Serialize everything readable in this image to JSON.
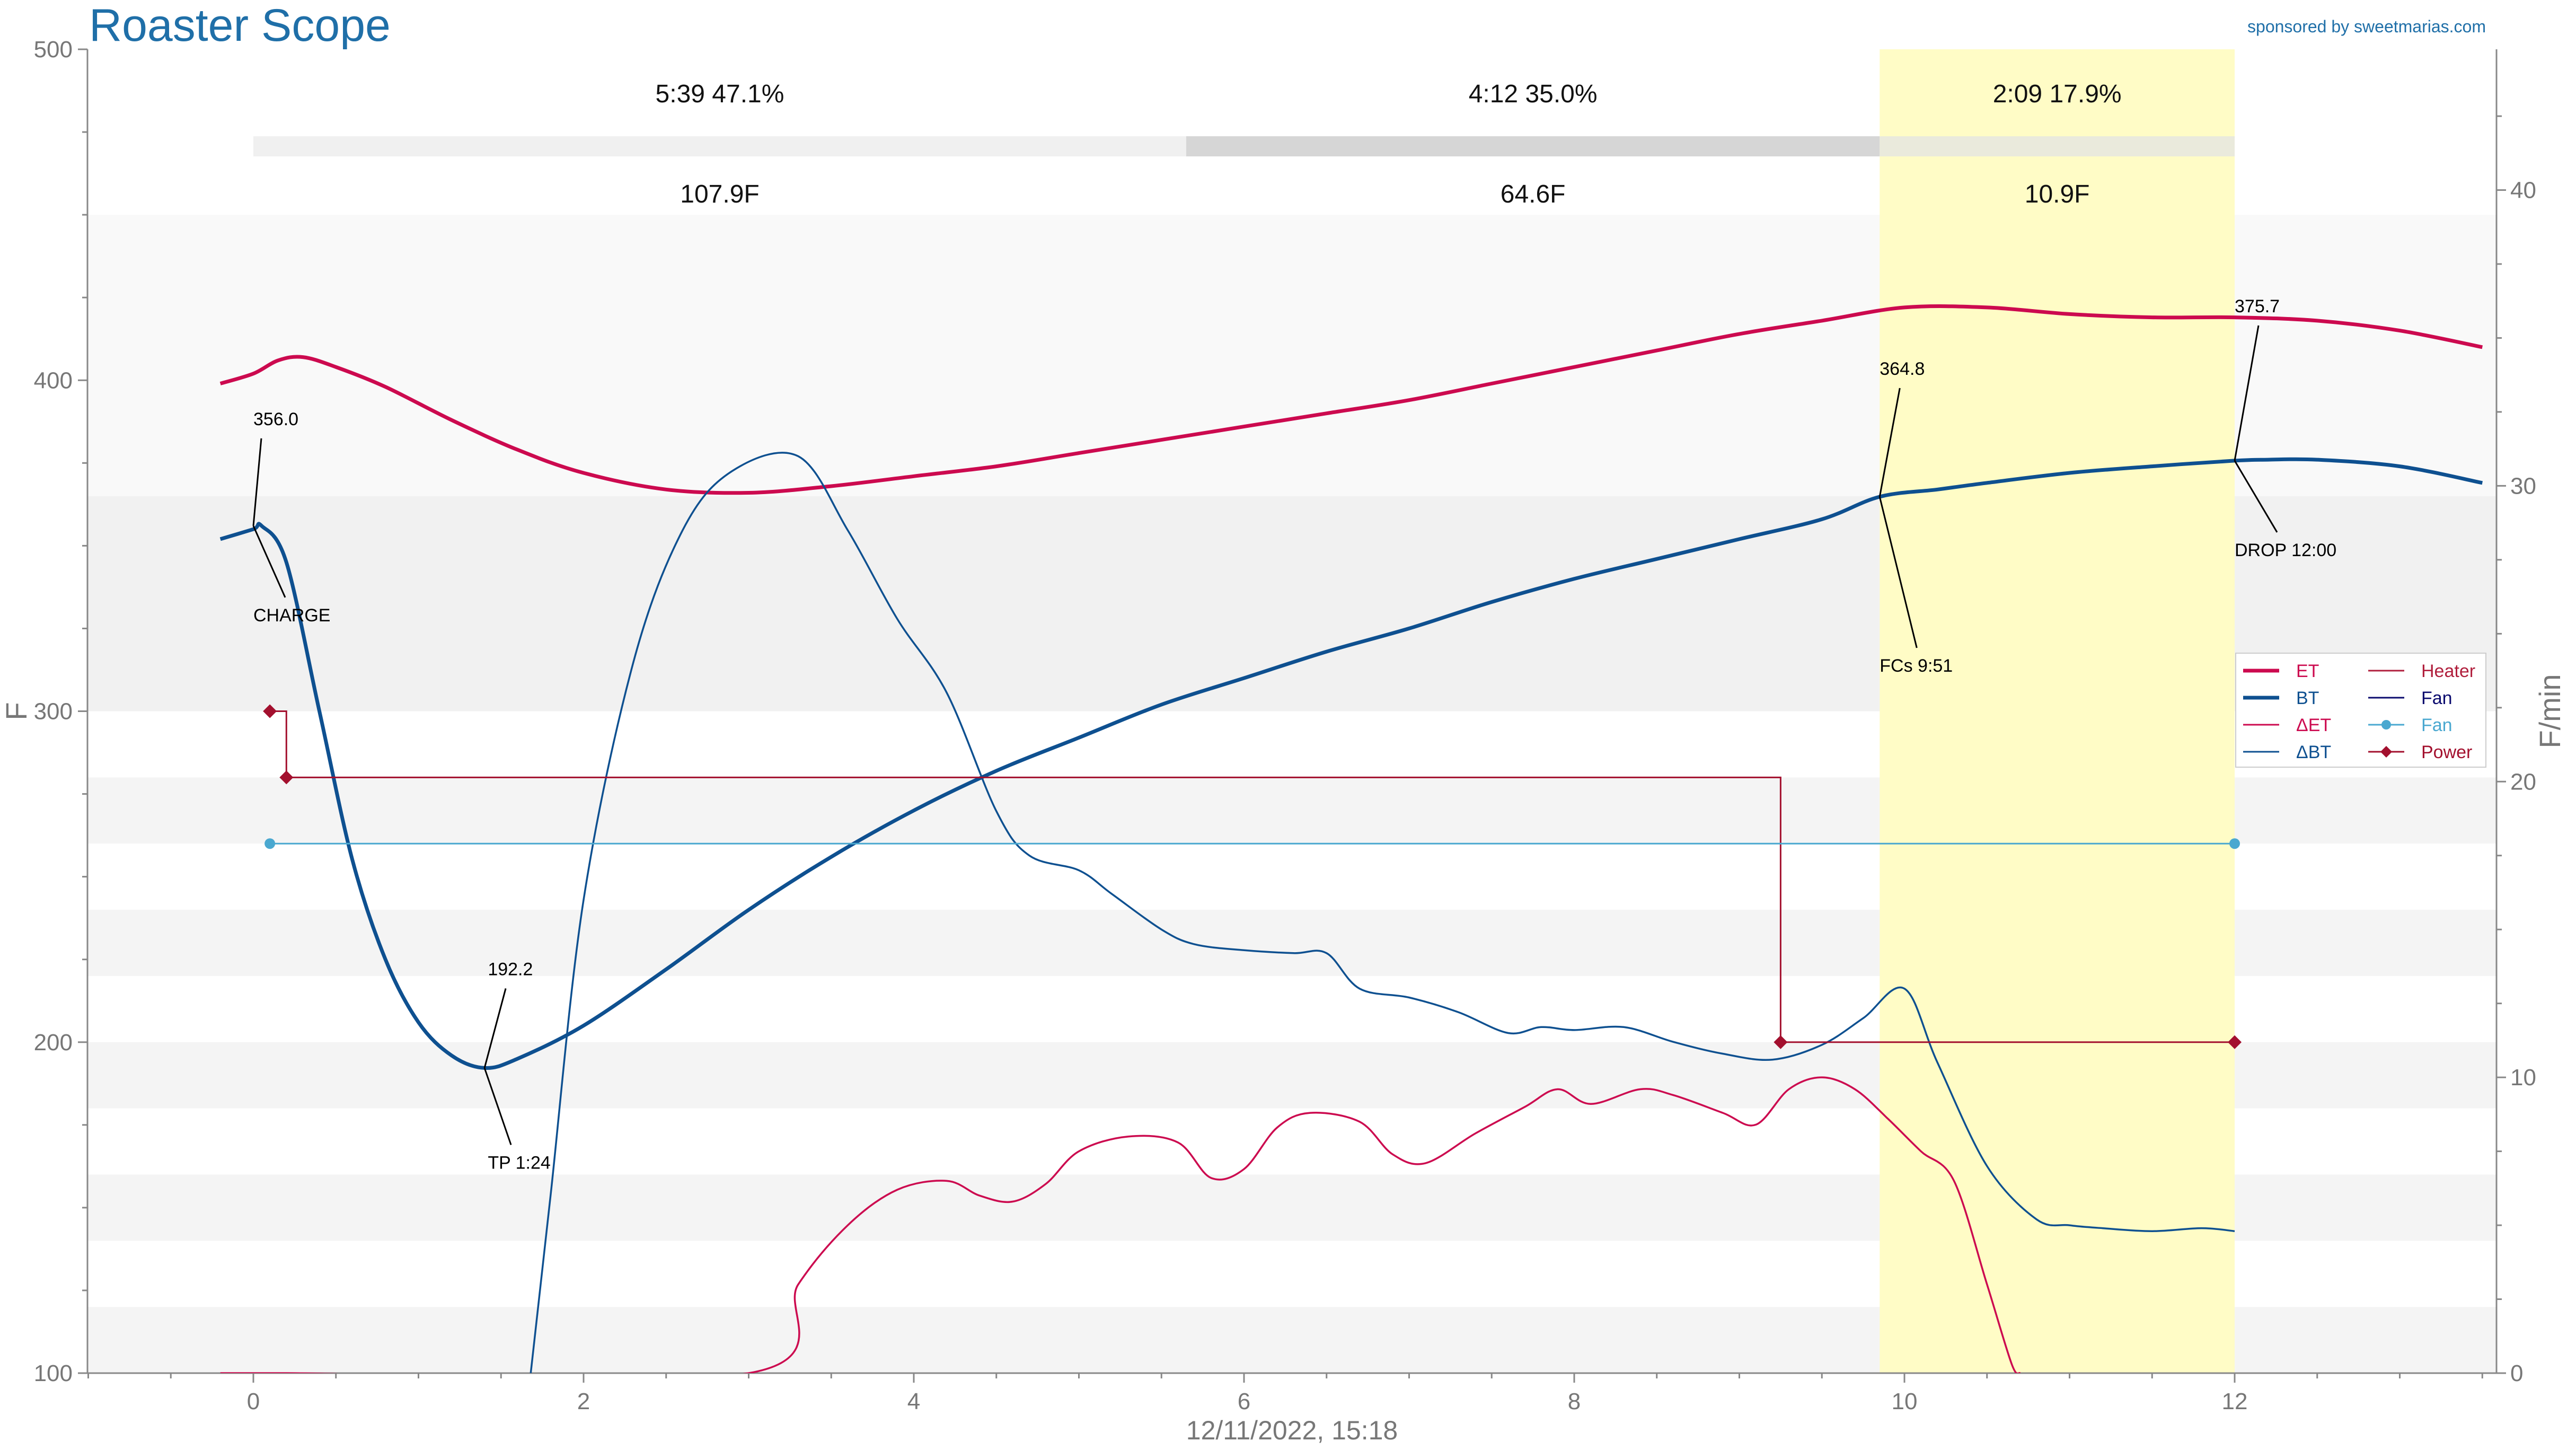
{
  "app": {
    "title": "Roaster Scope",
    "sponsor": "sponsored by sweetmarias.com"
  },
  "chart_data": {
    "type": "line",
    "x_label": "12/11/2022, 15:18",
    "y_left_label": "F",
    "y_right_label": "F/min",
    "x_range": [
      -1,
      13.5
    ],
    "y_left_range": [
      100,
      500
    ],
    "y_right_range": [
      0,
      44.76
    ],
    "x_ticks": [
      0,
      2,
      4,
      6,
      8,
      10,
      12
    ],
    "y_left_ticks": [
      100,
      200,
      300,
      400,
      500
    ],
    "y_right_ticks": [
      0,
      10,
      20,
      30,
      40
    ],
    "grid": false,
    "colors": {
      "ET": "#cc0a4f",
      "BT": "#0e5090",
      "dET": "#cc0a4f",
      "dBT": "#0e5090",
      "Heater": "#b01e3c",
      "Fan": "#4aa8d0",
      "Power": "#a3102e",
      "development_band": "#fffcc6",
      "annotation": "#000000"
    },
    "phases": [
      {
        "start": 0.0,
        "end": 5.65,
        "time": "5:39",
        "percent": "47.1%",
        "rise": "107.9F"
      },
      {
        "start": 5.65,
        "end": 9.85,
        "time": "4:12",
        "percent": "35.0%",
        "rise": "64.6F"
      },
      {
        "start": 9.85,
        "end": 12.0,
        "time": "2:09",
        "percent": "17.9%",
        "rise": "10.9F"
      }
    ],
    "series": [
      {
        "name": "ET",
        "axis": "left",
        "style": "thick",
        "points": [
          [
            -0.2,
            399
          ],
          [
            0.0,
            402
          ],
          [
            0.15,
            406
          ],
          [
            0.3,
            407
          ],
          [
            0.5,
            404
          ],
          [
            0.8,
            398
          ],
          [
            1.2,
            388
          ],
          [
            1.6,
            379
          ],
          [
            2.0,
            372
          ],
          [
            2.5,
            367
          ],
          [
            3.0,
            366
          ],
          [
            3.5,
            368
          ],
          [
            4.0,
            371
          ],
          [
            4.5,
            374
          ],
          [
            5.0,
            378
          ],
          [
            5.5,
            382
          ],
          [
            6.0,
            386
          ],
          [
            6.5,
            390
          ],
          [
            7.0,
            394
          ],
          [
            7.5,
            399
          ],
          [
            8.0,
            404
          ],
          [
            8.5,
            409
          ],
          [
            9.0,
            414
          ],
          [
            9.5,
            418
          ],
          [
            10.0,
            422
          ],
          [
            10.5,
            422
          ],
          [
            11.0,
            420
          ],
          [
            11.5,
            419
          ],
          [
            12.0,
            419
          ],
          [
            12.5,
            418
          ],
          [
            13.0,
            415
          ],
          [
            13.5,
            410
          ]
        ]
      },
      {
        "name": "BT",
        "axis": "left",
        "style": "thick",
        "points": [
          [
            -0.2,
            352
          ],
          [
            0.0,
            355
          ],
          [
            0.05,
            356
          ],
          [
            0.2,
            345
          ],
          [
            0.4,
            300
          ],
          [
            0.6,
            255
          ],
          [
            0.8,
            225
          ],
          [
            1.0,
            206
          ],
          [
            1.2,
            196
          ],
          [
            1.4,
            192.2
          ],
          [
            1.6,
            195
          ],
          [
            2.0,
            205
          ],
          [
            2.5,
            222
          ],
          [
            3.0,
            240
          ],
          [
            3.5,
            256
          ],
          [
            4.0,
            270
          ],
          [
            4.5,
            282
          ],
          [
            5.0,
            292
          ],
          [
            5.5,
            302
          ],
          [
            6.0,
            310
          ],
          [
            6.5,
            318
          ],
          [
            7.0,
            325
          ],
          [
            7.5,
            333
          ],
          [
            8.0,
            340
          ],
          [
            8.5,
            346
          ],
          [
            9.0,
            352
          ],
          [
            9.5,
            358
          ],
          [
            9.85,
            364.8
          ],
          [
            10.2,
            367
          ],
          [
            10.5,
            369
          ],
          [
            11.0,
            372
          ],
          [
            11.5,
            374
          ],
          [
            12.0,
            375.7
          ],
          [
            12.2,
            376
          ],
          [
            12.5,
            376
          ],
          [
            13.0,
            374
          ],
          [
            13.5,
            369
          ]
        ]
      },
      {
        "name": "ΔET",
        "axis": "right",
        "style": "thin",
        "points": [
          [
            -0.2,
            0
          ],
          [
            0.2,
            0
          ],
          [
            3.0,
            0
          ],
          [
            3.3,
            3
          ],
          [
            3.6,
            5
          ],
          [
            3.9,
            6.2
          ],
          [
            4.2,
            6.5
          ],
          [
            4.4,
            6.0
          ],
          [
            4.6,
            5.8
          ],
          [
            4.8,
            6.4
          ],
          [
            5.0,
            7.5
          ],
          [
            5.3,
            8.0
          ],
          [
            5.6,
            7.8
          ],
          [
            5.8,
            6.6
          ],
          [
            6.0,
            6.9
          ],
          [
            6.2,
            8.3
          ],
          [
            6.4,
            8.8
          ],
          [
            6.7,
            8.5
          ],
          [
            6.9,
            7.4
          ],
          [
            7.1,
            7.1
          ],
          [
            7.4,
            8.1
          ],
          [
            7.7,
            9.0
          ],
          [
            7.9,
            9.6
          ],
          [
            8.1,
            9.1
          ],
          [
            8.4,
            9.6
          ],
          [
            8.6,
            9.4
          ],
          [
            8.9,
            8.8
          ],
          [
            9.1,
            8.4
          ],
          [
            9.3,
            9.6
          ],
          [
            9.5,
            10.0
          ],
          [
            9.7,
            9.6
          ],
          [
            9.9,
            8.6
          ],
          [
            10.1,
            7.5
          ],
          [
            10.3,
            6.5
          ],
          [
            10.5,
            3.0
          ],
          [
            10.65,
            0.3
          ],
          [
            10.7,
            0
          ]
        ]
      },
      {
        "name": "ΔBT",
        "axis": "right",
        "style": "thin",
        "points": [
          [
            1.68,
            0
          ],
          [
            1.8,
            6
          ],
          [
            2.0,
            16
          ],
          [
            2.3,
            24
          ],
          [
            2.6,
            28.5
          ],
          [
            2.9,
            30.5
          ],
          [
            3.3,
            31
          ],
          [
            3.6,
            28.5
          ],
          [
            3.9,
            25.5
          ],
          [
            4.2,
            23
          ],
          [
            4.5,
            19
          ],
          [
            4.7,
            17.5
          ],
          [
            5.0,
            17
          ],
          [
            5.2,
            16.2
          ],
          [
            5.5,
            15
          ],
          [
            5.7,
            14.5
          ],
          [
            6.0,
            14.3
          ],
          [
            6.3,
            14.2
          ],
          [
            6.5,
            14.2
          ],
          [
            6.7,
            13.0
          ],
          [
            7.0,
            12.7
          ],
          [
            7.3,
            12.2
          ],
          [
            7.6,
            11.5
          ],
          [
            7.8,
            11.7
          ],
          [
            8.0,
            11.6
          ],
          [
            8.3,
            11.7
          ],
          [
            8.6,
            11.2
          ],
          [
            8.9,
            10.8
          ],
          [
            9.2,
            10.6
          ],
          [
            9.5,
            11.1
          ],
          [
            9.75,
            12.0
          ],
          [
            10.0,
            13.0
          ],
          [
            10.2,
            10.5
          ],
          [
            10.5,
            7.0
          ],
          [
            10.8,
            5.2
          ],
          [
            11.0,
            5.0
          ],
          [
            11.2,
            4.9
          ],
          [
            11.5,
            4.8
          ],
          [
            11.8,
            4.9
          ],
          [
            12.0,
            4.8
          ]
        ]
      }
    ],
    "step_series": [
      {
        "name": "Power",
        "axis": "left",
        "points": [
          [
            0.1,
            300
          ],
          [
            0.2,
            280
          ],
          [
            9.25,
            200
          ],
          [
            12.0,
            200
          ]
        ],
        "markers": [
          [
            0.1,
            300
          ],
          [
            0.2,
            280
          ],
          [
            9.25,
            200
          ],
          [
            12.0,
            200
          ]
        ]
      },
      {
        "name": "Fan",
        "axis": "left",
        "points": [
          [
            0.1,
            260
          ],
          [
            12.0,
            260
          ]
        ],
        "markers": [
          [
            0.1,
            260
          ],
          [
            12.0,
            260
          ]
        ]
      }
    ],
    "annotations": [
      {
        "value": "356.0",
        "label": "CHARGE",
        "at": [
          0.0,
          356
        ]
      },
      {
        "value": "192.2",
        "label": "TP 1:24",
        "at": [
          1.4,
          192.2
        ]
      },
      {
        "value": "364.8",
        "label": "FCs 9:51",
        "at": [
          9.85,
          364.8
        ]
      },
      {
        "value": "375.7",
        "label": "DROP 12:00",
        "at": [
          12.0,
          375.7
        ]
      }
    ],
    "legend": {
      "position": "right",
      "items": [
        {
          "name": "ET",
          "kind": "line-thick",
          "color": "#cc0a4f"
        },
        {
          "name": "BT",
          "kind": "line-thick",
          "color": "#0e5090"
        },
        {
          "name": "ΔET",
          "kind": "line",
          "color": "#cc0a4f"
        },
        {
          "name": "ΔBT",
          "kind": "line",
          "color": "#0e5090"
        },
        {
          "name": "Heater",
          "kind": "line",
          "color": "#b01e3c"
        },
        {
          "name": "Fan",
          "kind": "line",
          "color": "#0a0a6e"
        },
        {
          "name": "Fan",
          "kind": "marker-dot",
          "color": "#4aa8d0"
        },
        {
          "name": "Power",
          "kind": "marker-diamond",
          "color": "#a3102e"
        }
      ]
    }
  }
}
